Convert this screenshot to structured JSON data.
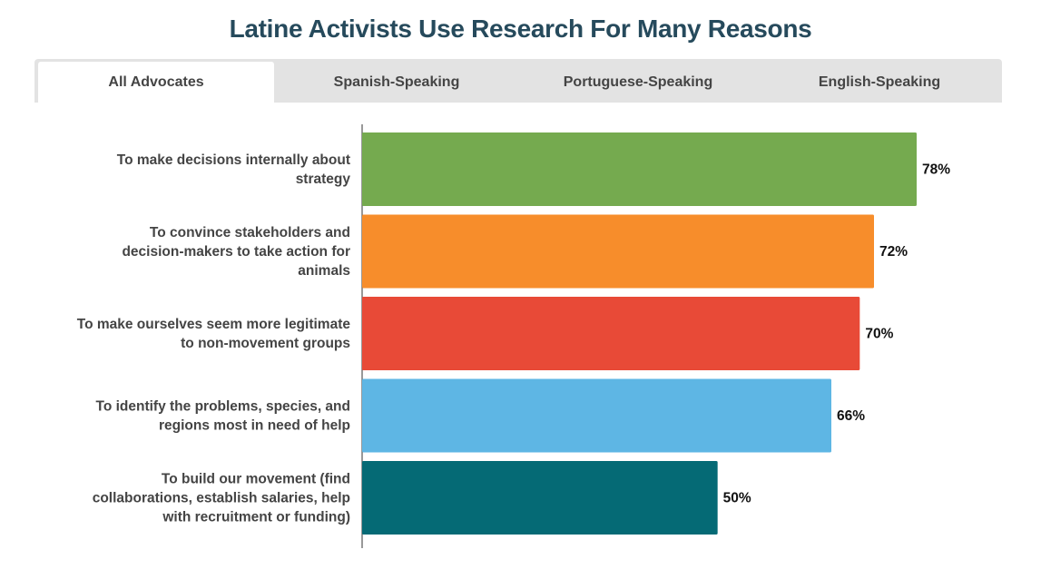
{
  "title": "Latine Activists Use Research For Many Reasons",
  "tabs": [
    {
      "label": "All Advocates",
      "active": true
    },
    {
      "label": "Spanish-Speaking",
      "active": false
    },
    {
      "label": "Portuguese-Speaking",
      "active": false
    },
    {
      "label": "English-Speaking",
      "active": false
    }
  ],
  "chart_data": {
    "type": "bar",
    "orientation": "horizontal",
    "title": "Latine Activists Use Research For Many Reasons",
    "categories": [
      [
        "To make decisions internally about",
        "strategy"
      ],
      [
        "To convince stakeholders and",
        "decision-makers to take action for",
        "animals"
      ],
      [
        "To make ourselves seem more legitimate",
        "to non-movement groups"
      ],
      [
        "To identify the problems, species, and",
        "regions most in need of help"
      ],
      [
        "To build our movement (find",
        "collaborations, establish salaries, help",
        "with recruitment or funding)"
      ]
    ],
    "values": [
      78,
      72,
      70,
      66,
      50
    ],
    "value_labels": [
      "78%",
      "72%",
      "70%",
      "66%",
      "50%"
    ],
    "colors": [
      "#75aa4f",
      "#f78d2b",
      "#e84a37",
      "#5eb6e4",
      "#056a75"
    ],
    "xlim": [
      0,
      100
    ],
    "grid": false,
    "legend": "none"
  }
}
